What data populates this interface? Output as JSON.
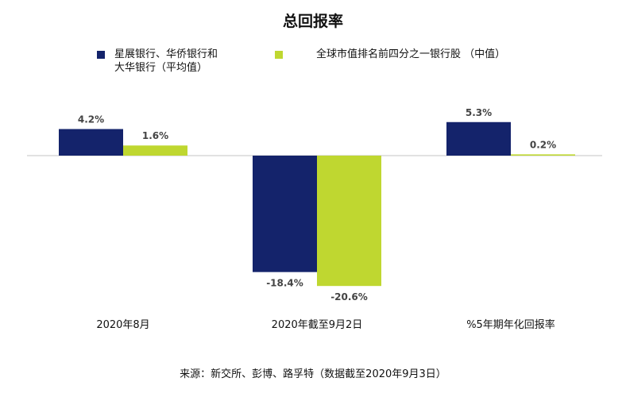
{
  "title": "总回报率",
  "source": "来源：新交所、彭博、路孚特（数据截至2020年9月3日）",
  "colors": {
    "series1": "#14236b",
    "series2": "#bfd730",
    "axis": "#d9d9d9",
    "label": "#444444"
  },
  "chart_data": {
    "type": "bar",
    "title": "总回报率",
    "categories": [
      "2020年8月",
      "2020年截至9月2日",
      "%5年期年化回报率"
    ],
    "series": [
      {
        "name": "星展银行、华侨银行和\n大华银行（平均值）",
        "values": [
          4.2,
          -18.4,
          5.3
        ],
        "labels": [
          "4.2%",
          "-18.4%",
          "5.3%"
        ]
      },
      {
        "name": "全球市值排名前四分之一银行股 （中值）",
        "values": [
          1.6,
          -20.6,
          0.2
        ],
        "labels": [
          "1.6%",
          "-20.6%",
          "0.2%"
        ]
      }
    ],
    "ylim": [
      -21,
      5.5
    ],
    "grid": false,
    "legend": "top"
  }
}
